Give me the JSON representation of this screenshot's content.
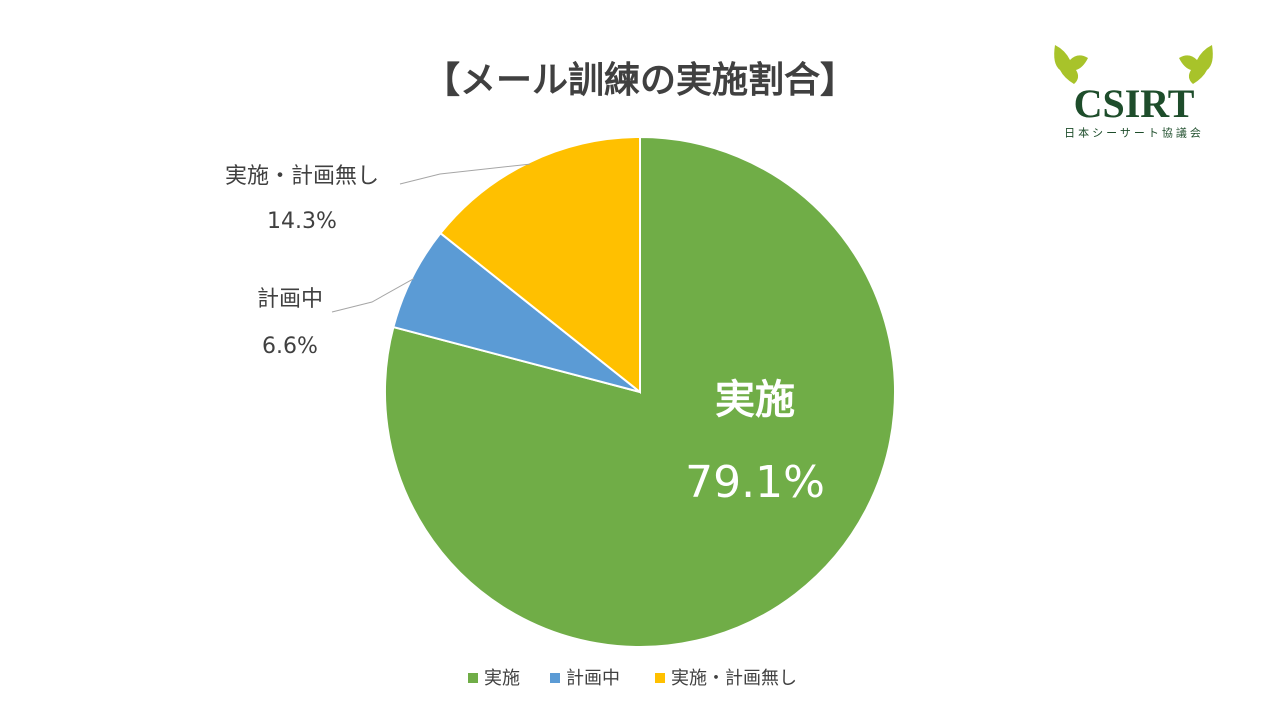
{
  "chart_data": {
    "type": "pie",
    "title": "【メール訓練の実施割合】",
    "categories": [
      "実施",
      "計画中",
      "実施・計画無し"
    ],
    "values": [
      79.1,
      6.6,
      14.3
    ],
    "value_labels": [
      "79.1%",
      "6.6%",
      "14.3%"
    ],
    "colors": [
      "#70ad47",
      "#5b9bd5",
      "#ffc000"
    ],
    "legend": "bottom"
  },
  "logo": {
    "text": "CSIRT",
    "subtitle": "日本シーサート協議会"
  }
}
